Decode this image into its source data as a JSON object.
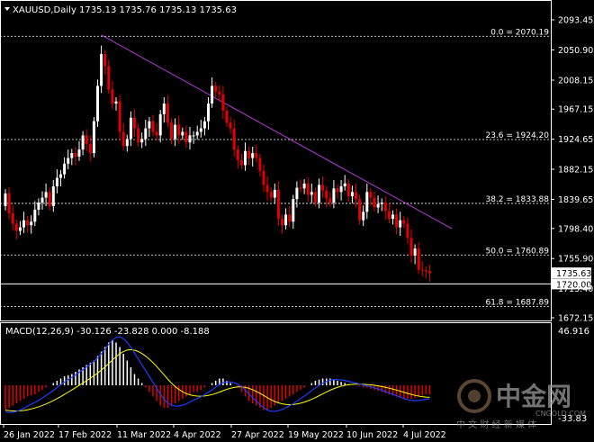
{
  "header": {
    "symbol": "XAUUSD,Daily",
    "ohlc": "1735.13 1735.76 1735.13 1735.63"
  },
  "macd_header": "MACD(12,26,9) -30.126 -23.828 0.000 -8.188",
  "price_axis": {
    "ticks": [
      "2093.45",
      "2050.90",
      "2008.15",
      "1967.15",
      "1924.65",
      "1882.15",
      "1839.65",
      "1798.40",
      "1755.90",
      "1713.40",
      "1672.15"
    ],
    "current_price_label": "1735.63",
    "line_price_label": "1720.00"
  },
  "macd_axis": {
    "top_label": "46.916",
    "bottom_label": "-33.83"
  },
  "time_axis": [
    "26 Jan 2022",
    "17 Feb 2022",
    "11 Mar 2022",
    "4 Apr 2022",
    "27 Apr 2022",
    "19 May 2022",
    "10 Jun 2022",
    "4 Jul 2022"
  ],
  "fib_levels": [
    {
      "label": "0.0 = 2070.19",
      "price": 2070.19
    },
    {
      "label": "23.6 = 1924.20",
      "price": 1924.2
    },
    {
      "label": "38.2 = 1833.88",
      "price": 1833.88
    },
    {
      "label": "50.0 = 1760.89",
      "price": 1760.89
    },
    {
      "label": "61.8 = 1687.89",
      "price": 1687.89
    }
  ],
  "horizontal_line_price": 1720.0,
  "trendline": {
    "from_bar": 26,
    "from_price": 2072,
    "to_bar": 121,
    "to_price": 1798
  },
  "watermark": {
    "brand": "中金网",
    "domain": "CNGOLD.COM",
    "tagline": "中 文 财 经 新 媒 体"
  },
  "colors": {
    "bull": "#ffffff",
    "bear": "#e30000",
    "grid": "#ffffff",
    "trendline": "#b23ad9",
    "signal": "#ffff00",
    "macd_line": "#1e3cff",
    "current_price_bg": "#ffffff",
    "line_price_bg": "#ffffff"
  },
  "chart_data": {
    "type": "candlestick",
    "series_close": [
      1848,
      1820,
      1805,
      1795,
      1800,
      1810,
      1803,
      1808,
      1825,
      1835,
      1842,
      1850,
      1830,
      1858,
      1870,
      1875,
      1890,
      1898,
      1905,
      1900,
      1910,
      1930,
      1918,
      1905,
      1950,
      2000,
      2045,
      2028,
      1995,
      1975,
      1978,
      1935,
      1915,
      1925,
      1955,
      1940,
      1920,
      1925,
      1940,
      1950,
      1935,
      1930,
      1960,
      1975,
      1948,
      1925,
      1945,
      1930,
      1935,
      1920,
      1930,
      1930,
      1935,
      1940,
      1950,
      1975,
      2000,
      1992,
      1988,
      1965,
      1948,
      1940,
      1910,
      1895,
      1888,
      1908,
      1898,
      1905,
      1898,
      1880,
      1860,
      1850,
      1842,
      1853,
      1812,
      1803,
      1818,
      1808,
      1840,
      1856,
      1855,
      1862,
      1846,
      1850,
      1835,
      1860,
      1852,
      1841,
      1835,
      1855,
      1850,
      1858,
      1862,
      1844,
      1850,
      1840,
      1810,
      1822,
      1850,
      1842,
      1828,
      1833,
      1835,
      1823,
      1812,
      1818,
      1800,
      1810,
      1805,
      1785,
      1760,
      1770,
      1740,
      1739,
      1738,
      1735
    ],
    "macd_hist": [
      -22,
      -20,
      -18,
      -16,
      -14,
      -12,
      -10,
      -9,
      -8,
      -6,
      -4,
      -2,
      0,
      2,
      4,
      6,
      8,
      9,
      10,
      12,
      14,
      16,
      18,
      20,
      22,
      26,
      30,
      34,
      38,
      40,
      38,
      34,
      28,
      22,
      16,
      10,
      6,
      2,
      -2,
      -6,
      -10,
      -14,
      -18,
      -20,
      -20,
      -18,
      -16,
      -14,
      -12,
      -10,
      -8,
      -6,
      -6,
      -4,
      -2,
      0,
      2,
      4,
      6,
      6,
      4,
      2,
      0,
      -2,
      -6,
      -10,
      -14,
      -16,
      -18,
      -20,
      -22,
      -22,
      -20,
      -18,
      -16,
      -14,
      -12,
      -10,
      -8,
      -6,
      -4,
      -2,
      0,
      2,
      4,
      5,
      6,
      6,
      6,
      5,
      4,
      3,
      2,
      1,
      0,
      0,
      -1,
      -2,
      -2,
      -3,
      -4,
      -5,
      -6,
      -7,
      -8,
      -9,
      -10,
      -11,
      -12,
      -12,
      -12,
      -11,
      -10,
      -9,
      -8,
      -8
    ]
  }
}
